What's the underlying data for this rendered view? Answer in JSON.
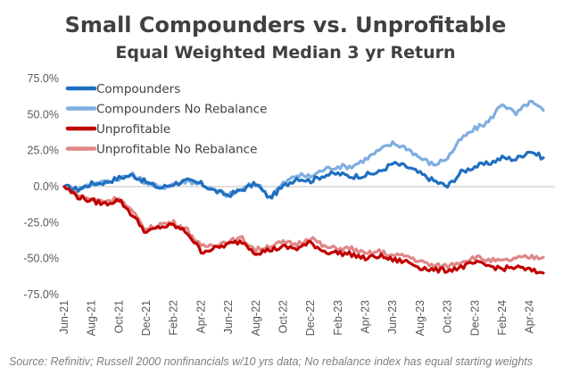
{
  "title": "Small Compounders vs. Unprofitable",
  "subtitle": "Equal Weighted Median 3 yr Return",
  "source": "Source: Refinitiv; Russell 2000 nonfinancials w/10 yrs data; No rebalance index has equal starting weights",
  "chart_data": {
    "type": "line",
    "title": "Small Compounders vs. Unprofitable",
    "subtitle": "Equal Weighted Median 3 yr Return",
    "ylim": [
      -0.75,
      0.75
    ],
    "y_ticks": [
      0.75,
      0.5,
      0.25,
      0,
      -0.25,
      -0.5,
      -0.75
    ],
    "y_tick_labels": [
      "75.0%",
      "50.0%",
      "25.0%",
      "0.0%",
      "-25.0%",
      "-50.0%",
      "-75.0%"
    ],
    "x_tick_labels": [
      "Jun-21",
      "Aug-21",
      "Oct-21",
      "Dec-21",
      "Feb-22",
      "Apr-22",
      "Jun-22",
      "Aug-22",
      "Oct-22",
      "Dec-22",
      "Feb-23",
      "Apr-23",
      "Jun-23",
      "Aug-23",
      "Oct-23",
      "Dec-23",
      "Feb-24",
      "Apr-24"
    ],
    "x_months": [
      "Jun-21",
      "Jul-21",
      "Aug-21",
      "Sep-21",
      "Oct-21",
      "Nov-21",
      "Dec-21",
      "Jan-22",
      "Feb-22",
      "Mar-22",
      "Apr-22",
      "May-22",
      "Jun-22",
      "Jul-22",
      "Aug-22",
      "Sep-22",
      "Oct-22",
      "Nov-22",
      "Dec-22",
      "Jan-23",
      "Feb-23",
      "Mar-23",
      "Apr-23",
      "May-23",
      "Jun-23",
      "Jul-23",
      "Aug-23",
      "Sep-23",
      "Oct-23",
      "Nov-23",
      "Dec-23",
      "Jan-24",
      "Feb-24",
      "Mar-24",
      "Apr-24",
      "May-24"
    ],
    "legend_position": "top-left",
    "grid": false,
    "series": [
      {
        "name": "Compounders",
        "color": "#1f6fc1",
        "values": [
          0.0,
          -0.02,
          0.02,
          0.03,
          0.06,
          0.08,
          0.03,
          -0.01,
          0.02,
          0.04,
          0.02,
          -0.03,
          -0.06,
          -0.02,
          0.02,
          -0.08,
          0.0,
          0.06,
          0.04,
          0.08,
          0.09,
          0.07,
          0.08,
          0.1,
          0.16,
          0.14,
          0.09,
          0.04,
          0.0,
          0.1,
          0.14,
          0.16,
          0.2,
          0.19,
          0.25,
          0.2
        ]
      },
      {
        "name": "Compounders No Rebalance",
        "color": "#7faee0",
        "values": [
          0.0,
          -0.02,
          0.02,
          0.03,
          0.06,
          0.08,
          0.03,
          -0.01,
          0.02,
          0.04,
          0.02,
          -0.03,
          -0.06,
          -0.02,
          0.03,
          -0.07,
          0.02,
          0.08,
          0.07,
          0.12,
          0.14,
          0.14,
          0.19,
          0.25,
          0.3,
          0.27,
          0.2,
          0.15,
          0.2,
          0.33,
          0.4,
          0.45,
          0.58,
          0.5,
          0.59,
          0.53
        ]
      },
      {
        "name": "Unprofitable",
        "color": "#c00000",
        "values": [
          0.0,
          -0.07,
          -0.1,
          -0.12,
          -0.09,
          -0.2,
          -0.32,
          -0.28,
          -0.27,
          -0.32,
          -0.45,
          -0.43,
          -0.4,
          -0.38,
          -0.46,
          -0.44,
          -0.42,
          -0.43,
          -0.39,
          -0.45,
          -0.46,
          -0.47,
          -0.5,
          -0.48,
          -0.51,
          -0.52,
          -0.56,
          -0.58,
          -0.58,
          -0.56,
          -0.53,
          -0.55,
          -0.57,
          -0.56,
          -0.58,
          -0.6
        ]
      },
      {
        "name": "Unprofitable No Rebalance",
        "color": "#df8787",
        "values": [
          0.0,
          -0.06,
          -0.09,
          -0.1,
          -0.08,
          -0.18,
          -0.3,
          -0.26,
          -0.25,
          -0.3,
          -0.42,
          -0.4,
          -0.38,
          -0.36,
          -0.44,
          -0.41,
          -0.39,
          -0.4,
          -0.35,
          -0.42,
          -0.43,
          -0.43,
          -0.47,
          -0.45,
          -0.48,
          -0.48,
          -0.52,
          -0.55,
          -0.55,
          -0.52,
          -0.49,
          -0.51,
          -0.52,
          -0.5,
          -0.49,
          -0.49
        ]
      }
    ]
  }
}
